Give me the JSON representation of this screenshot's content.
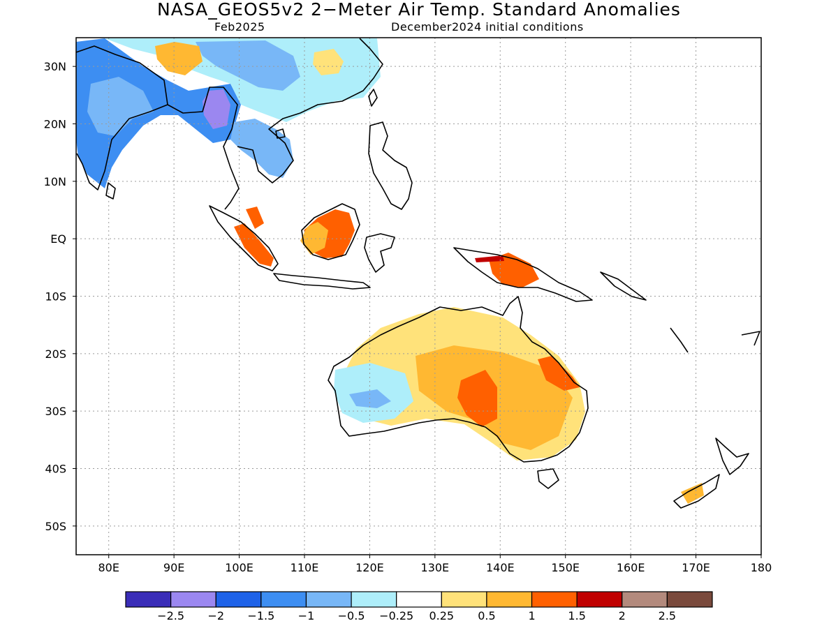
{
  "title": "NASA_GEOS5v2 2−Meter Air Temp. Standard Anomalies",
  "subtitle_left": "Feb2025",
  "subtitle_right": "December2024 initial conditions",
  "map": {
    "lon_range": [
      75,
      180
    ],
    "lat_range": [
      -55,
      35
    ],
    "x_ticks": [
      {
        "value": 80,
        "label": "80E"
      },
      {
        "value": 90,
        "label": "90E"
      },
      {
        "value": 100,
        "label": "100E"
      },
      {
        "value": 110,
        "label": "110E"
      },
      {
        "value": 120,
        "label": "120E"
      },
      {
        "value": 130,
        "label": "130E"
      },
      {
        "value": 140,
        "label": "140E"
      },
      {
        "value": 150,
        "label": "150E"
      },
      {
        "value": 160,
        "label": "160E"
      },
      {
        "value": 170,
        "label": "170E"
      },
      {
        "value": 180,
        "label": "180"
      }
    ],
    "y_ticks": [
      {
        "value": 30,
        "label": "30N"
      },
      {
        "value": 20,
        "label": "20N"
      },
      {
        "value": 10,
        "label": "10N"
      },
      {
        "value": 0,
        "label": "EQ"
      },
      {
        "value": -10,
        "label": "10S"
      },
      {
        "value": -20,
        "label": "20S"
      },
      {
        "value": -30,
        "label": "30S"
      },
      {
        "value": -40,
        "label": "40S"
      },
      {
        "value": -50,
        "label": "50S"
      }
    ],
    "grid": true
  },
  "colorbar": {
    "colors": [
      "#3a2db8",
      "#9b87f0",
      "#1e62e8",
      "#3d8ef2",
      "#78b7f7",
      "#aeeefa",
      "#ffffff",
      "#ffe27a",
      "#ffb832",
      "#ff6000",
      "#c00000",
      "#b38a7d",
      "#7a4a3c"
    ],
    "labels": [
      "−2.5",
      "−2",
      "−1.5",
      "−1",
      "−0.5",
      "−0.25",
      "0.25",
      "0.5",
      "1",
      "1.5",
      "2",
      "2.5"
    ]
  },
  "anomaly_regions": [
    {
      "lon": [
        75,
        96
      ],
      "lat": [
        14,
        34
      ],
      "level": -1.25
    },
    {
      "lon": [
        93,
        99
      ],
      "lat": [
        17,
        27
      ],
      "level": -2.25
    },
    {
      "lon": [
        98,
        110
      ],
      "lat": [
        12,
        24
      ],
      "level": -0.75
    },
    {
      "lon": [
        100,
        122
      ],
      "lat": [
        28,
        35
      ],
      "level": -0.75
    },
    {
      "lon": [
        86,
        92
      ],
      "lat": [
        30,
        33
      ],
      "level": 0.75
    },
    {
      "lon": [
        110,
        117
      ],
      "lat": [
        -3,
        4
      ],
      "level": 1.25
    },
    {
      "lon": [
        100,
        105
      ],
      "lat": [
        -6,
        2
      ],
      "level": 1.25
    },
    {
      "lon": [
        138,
        147
      ],
      "lat": [
        -8,
        -3
      ],
      "level": 1.25
    },
    {
      "lon": [
        120,
        153
      ],
      "lat": [
        -38,
        -15
      ],
      "level": 0.4
    },
    {
      "lon": [
        133,
        141
      ],
      "lat": [
        -32,
        -22
      ],
      "level": 1.25
    },
    {
      "lon": [
        116,
        127
      ],
      "lat": [
        -31,
        -22
      ],
      "level": -0.6
    }
  ]
}
